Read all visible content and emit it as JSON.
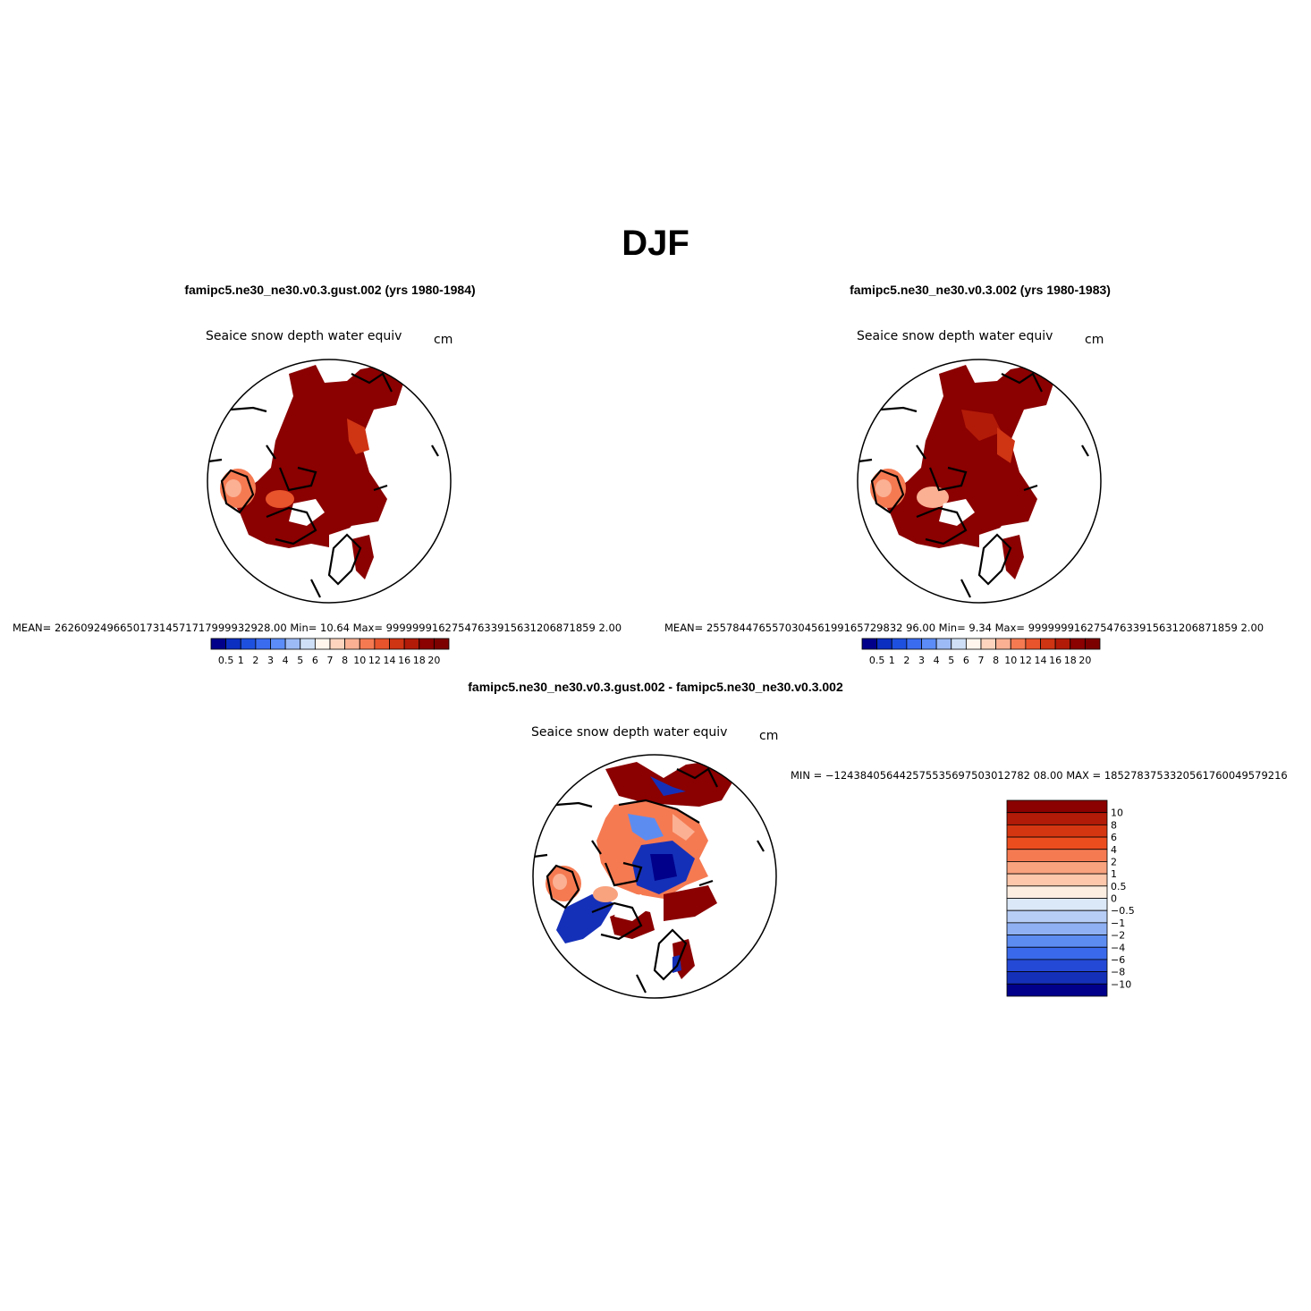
{
  "title": "DJF",
  "panels": [
    {
      "case_title": "famipc5.ne30_ne30.v0.3.gust.002 (yrs 1980-1984)",
      "variable": "Seaice snow depth water equiv",
      "units": "cm",
      "stats": "MEAN= 262609249665017314571717999932928.00   Min=    10.64   Max= 99999991627547633915631206871859 2.00"
    },
    {
      "case_title": "famipc5.ne30_ne30.v0.3.002 (yrs 1980-1983)",
      "variable": "Seaice snow depth water equiv",
      "units": "cm",
      "stats": "MEAN= 255784476557030456199165729832 96.00   Min=     9.34   Max= 99999991627547633915631206871859 2.00"
    },
    {
      "case_title": "famipc5.ne30_ne30.v0.3.gust.002 - famipc5.ne30_ne30.v0.3.002",
      "variable": "Seaice snow depth water equiv",
      "units": "cm",
      "stats": "MIN = −124384056442575535697503012782 08.00 MAX = 1852783753320561760049579216"
    }
  ],
  "colorbar_abs": {
    "labels": [
      "0.5",
      "1",
      "2",
      "3",
      "4",
      "5",
      "6",
      "7",
      "8",
      "10",
      "12",
      "14",
      "16",
      "18",
      "20"
    ],
    "colors": [
      "#00008b",
      "#0b2fc1",
      "#1e50df",
      "#3a6cf0",
      "#5b8cf7",
      "#9cbaf5",
      "#cfe0f6",
      "#fff7ee",
      "#fdd5bf",
      "#fbb093",
      "#f57a52",
      "#e8542b",
      "#cf3413",
      "#b21b08",
      "#8b0000",
      "#7d0000"
    ]
  },
  "colorbar_diff": {
    "labels": [
      "10",
      "8",
      "6",
      "4",
      "2",
      "1",
      "0.5",
      "0",
      "−0.5",
      "−1",
      "−2",
      "−4",
      "−6",
      "−8",
      "−10"
    ],
    "colors": [
      "#8b0000",
      "#b21b08",
      "#d53612",
      "#ec4d1f",
      "#f57a52",
      "#f9a27e",
      "#fcc7aa",
      "#fdeee2",
      "#dbe8f8",
      "#b7cdf5",
      "#8fb0f3",
      "#5d8cf1",
      "#3a6aeb",
      "#2449d6",
      "#1530b8",
      "#00008b"
    ]
  }
}
